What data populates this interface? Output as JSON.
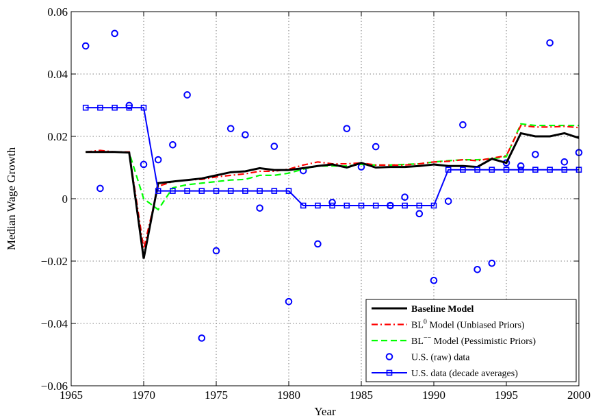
{
  "chart_data": {
    "type": "line",
    "title": "",
    "xlabel": "Year",
    "ylabel": "Median Wage Growth",
    "xlim": [
      1965,
      2000
    ],
    "ylim": [
      -0.06,
      0.06
    ],
    "grid": true,
    "legend_position": "bottom-right",
    "x_ticks": [
      1965,
      1970,
      1975,
      1980,
      1985,
      1990,
      1995,
      2000
    ],
    "x_tick_labels": [
      "1965",
      "1970",
      "1975",
      "1980",
      "1985",
      "1990",
      "1995",
      "2000"
    ],
    "y_ticks": [
      -0.06,
      -0.04,
      -0.02,
      0,
      0.02,
      0.04,
      0.06
    ],
    "y_tick_labels": [
      "−0.06",
      "−0.04",
      "−0.02",
      "0",
      "0.02",
      "0.04",
      "0.06"
    ],
    "legend": [
      {
        "label": "Baseline Model",
        "series": 0
      },
      {
        "label_base": "BL",
        "label_sup": "0",
        "label_rest": " Model (Unbiased Priors)",
        "series": 1
      },
      {
        "label_base": "BL",
        "label_sup": "−−",
        "label_rest": " Model (Pessimistic Priors)",
        "series": 2
      },
      {
        "label": "U.S. (raw) data",
        "series": 3
      },
      {
        "label": "U.S. data (decade averages)",
        "series": 4
      }
    ],
    "series": [
      {
        "style": "solid",
        "color": "#000000",
        "x": [
          1966,
          1967,
          1968,
          1969,
          1970,
          1971,
          1972,
          1973,
          1974,
          1975,
          1976,
          1977,
          1978,
          1979,
          1980,
          1981,
          1982,
          1983,
          1984,
          1985,
          1986,
          1987,
          1988,
          1989,
          1990,
          1991,
          1992,
          1993,
          1994,
          1995,
          1996,
          1997,
          1998,
          1999,
          2000
        ],
        "values": [
          0.015,
          0.015,
          0.015,
          0.0148,
          -0.0192,
          0.005,
          0.0055,
          0.006,
          0.0065,
          0.0075,
          0.0085,
          0.0088,
          0.0098,
          0.0092,
          0.0092,
          0.0098,
          0.0105,
          0.011,
          0.01,
          0.0115,
          0.01,
          0.0102,
          0.0102,
          0.0105,
          0.011,
          0.0105,
          0.0105,
          0.0102,
          0.0128,
          0.0115,
          0.021,
          0.02,
          0.02,
          0.021,
          0.0195
        ]
      },
      {
        "style": "dashdot",
        "color": "#ff0000",
        "x": [
          1966,
          1967,
          1968,
          1969,
          1970,
          1971,
          1972,
          1973,
          1974,
          1975,
          1976,
          1977,
          1978,
          1979,
          1980,
          1981,
          1982,
          1983,
          1984,
          1985,
          1986,
          1987,
          1988,
          1989,
          1990,
          1991,
          1992,
          1993,
          1994,
          1995,
          1996,
          1997,
          1998,
          1999,
          2000
        ],
        "values": [
          0.015,
          0.0155,
          0.015,
          0.015,
          -0.016,
          0.004,
          0.0055,
          0.006,
          0.0062,
          0.007,
          0.0075,
          0.008,
          0.0088,
          0.0088,
          0.0095,
          0.0108,
          0.0118,
          0.0112,
          0.0112,
          0.0115,
          0.0108,
          0.0108,
          0.0108,
          0.0112,
          0.0118,
          0.012,
          0.0125,
          0.0122,
          0.013,
          0.0138,
          0.0235,
          0.023,
          0.023,
          0.0232,
          0.0228
        ]
      },
      {
        "style": "dashed",
        "color": "#00ff00",
        "x": [
          1966,
          1967,
          1968,
          1969,
          1970,
          1971,
          1972,
          1973,
          1974,
          1975,
          1976,
          1977,
          1978,
          1979,
          1980,
          1981,
          1982,
          1983,
          1984,
          1985,
          1986,
          1987,
          1988,
          1989,
          1990,
          1991,
          1992,
          1993,
          1994,
          1995,
          1996,
          1997,
          1998,
          1999,
          2000
        ],
        "values": [
          0.015,
          0.015,
          0.015,
          0.0148,
          0.0,
          -0.0035,
          0.0035,
          0.0045,
          0.005,
          0.0055,
          0.006,
          0.0062,
          0.0075,
          0.0075,
          0.0082,
          0.0095,
          0.0105,
          0.0105,
          0.0105,
          0.011,
          0.0108,
          0.0108,
          0.011,
          0.0112,
          0.0118,
          0.0122,
          0.0125,
          0.0125,
          0.0128,
          0.0135,
          0.024,
          0.0235,
          0.0235,
          0.0235,
          0.0235
        ]
      },
      {
        "style": "markers",
        "marker": "circle",
        "color": "#0000ff",
        "x": [
          1966,
          1967,
          1968,
          1969,
          1970,
          1971,
          1972,
          1973,
          1974,
          1975,
          1976,
          1977,
          1978,
          1979,
          1980,
          1981,
          1982,
          1983,
          1984,
          1985,
          1986,
          1987,
          1988,
          1989,
          1990,
          1991,
          1992,
          1993,
          1994,
          1995,
          1996,
          1997,
          1998,
          1999,
          2000
        ],
        "values": [
          0.049,
          0.0033,
          0.053,
          0.0299,
          0.011,
          0.0125,
          0.0173,
          0.0333,
          -0.0447,
          -0.0167,
          0.0225,
          0.0205,
          -0.003,
          0.0168,
          -0.033,
          0.009,
          -0.0145,
          -0.0012,
          0.0225,
          0.0102,
          0.0167,
          -0.0022,
          0.0005,
          -0.0048,
          -0.0262,
          -0.0008,
          0.0237,
          -0.0227,
          -0.0207,
          0.0115,
          0.0105,
          0.0142,
          0.05,
          0.0118,
          0.0148
        ]
      },
      {
        "style": "solid-square",
        "marker": "square",
        "color": "#0000ff",
        "x": [
          1966,
          1967,
          1968,
          1969,
          1970,
          1971,
          1972,
          1973,
          1974,
          1975,
          1976,
          1977,
          1978,
          1979,
          1980,
          1981,
          1982,
          1983,
          1984,
          1985,
          1986,
          1987,
          1988,
          1989,
          1990,
          1991,
          1992,
          1993,
          1994,
          1995,
          1996,
          1997,
          1998,
          1999,
          2000
        ],
        "values": [
          0.0292,
          0.0292,
          0.0292,
          0.0292,
          0.0292,
          0.0025,
          0.0025,
          0.0025,
          0.0025,
          0.0025,
          0.0025,
          0.0025,
          0.0025,
          0.0025,
          0.0025,
          -0.0022,
          -0.0022,
          -0.0022,
          -0.0022,
          -0.0022,
          -0.0022,
          -0.0022,
          -0.0022,
          -0.0022,
          -0.0022,
          0.0093,
          0.0093,
          0.0093,
          0.0093,
          0.0093,
          0.0093,
          0.0093,
          0.0093,
          0.0093,
          0.0093
        ]
      }
    ]
  }
}
